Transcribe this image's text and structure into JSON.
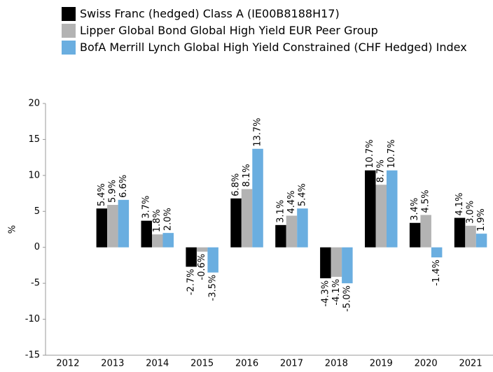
{
  "chart_data": {
    "type": "bar",
    "ylabel": "%",
    "categories": [
      "2012",
      "2013",
      "2014",
      "2015",
      "2016",
      "2017",
      "2018",
      "2019",
      "2020",
      "2021"
    ],
    "series": [
      {
        "name": "Swiss Franc (hedged) Class A (IE00B8188H17)",
        "color": "#000000",
        "values": [
          null,
          5.4,
          3.7,
          -2.7,
          6.8,
          3.1,
          -4.3,
          10.7,
          3.4,
          4.1
        ],
        "value_labels": [
          null,
          "5.4%",
          "3.7%",
          "-2.7%",
          "6.8%",
          "3.1%",
          "-4.3%",
          "10.7%",
          "3.4%",
          "4.1%"
        ]
      },
      {
        "name": "Lipper Global Bond Global High Yield EUR Peer Group",
        "color": "#b3b3b3",
        "values": [
          null,
          5.9,
          1.8,
          -0.6,
          8.1,
          4.4,
          -4.1,
          8.7,
          4.5,
          3.0
        ],
        "value_labels": [
          null,
          "5.9%",
          "1.8%",
          "-0.6%",
          "8.1%",
          "4.4%",
          "-4.1%",
          "8.7%",
          "4.5%",
          "3.0%"
        ]
      },
      {
        "name": "BofA Merrill Lynch Global High Yield Constrained (CHF Hedged) Index",
        "color": "#6aaee0",
        "values": [
          null,
          6.6,
          2.0,
          -3.5,
          13.7,
          5.4,
          -5.0,
          10.7,
          -1.4,
          1.9
        ],
        "value_labels": [
          null,
          "6.6%",
          "2.0%",
          "-3.5%",
          "13.7%",
          "5.4%",
          "-5.0%",
          "10.7%",
          "-1.4%",
          "1.9%"
        ]
      }
    ],
    "ylim": [
      -15,
      20
    ],
    "yticks": [
      -15,
      -10,
      -5,
      0,
      5,
      10,
      15,
      20
    ]
  }
}
